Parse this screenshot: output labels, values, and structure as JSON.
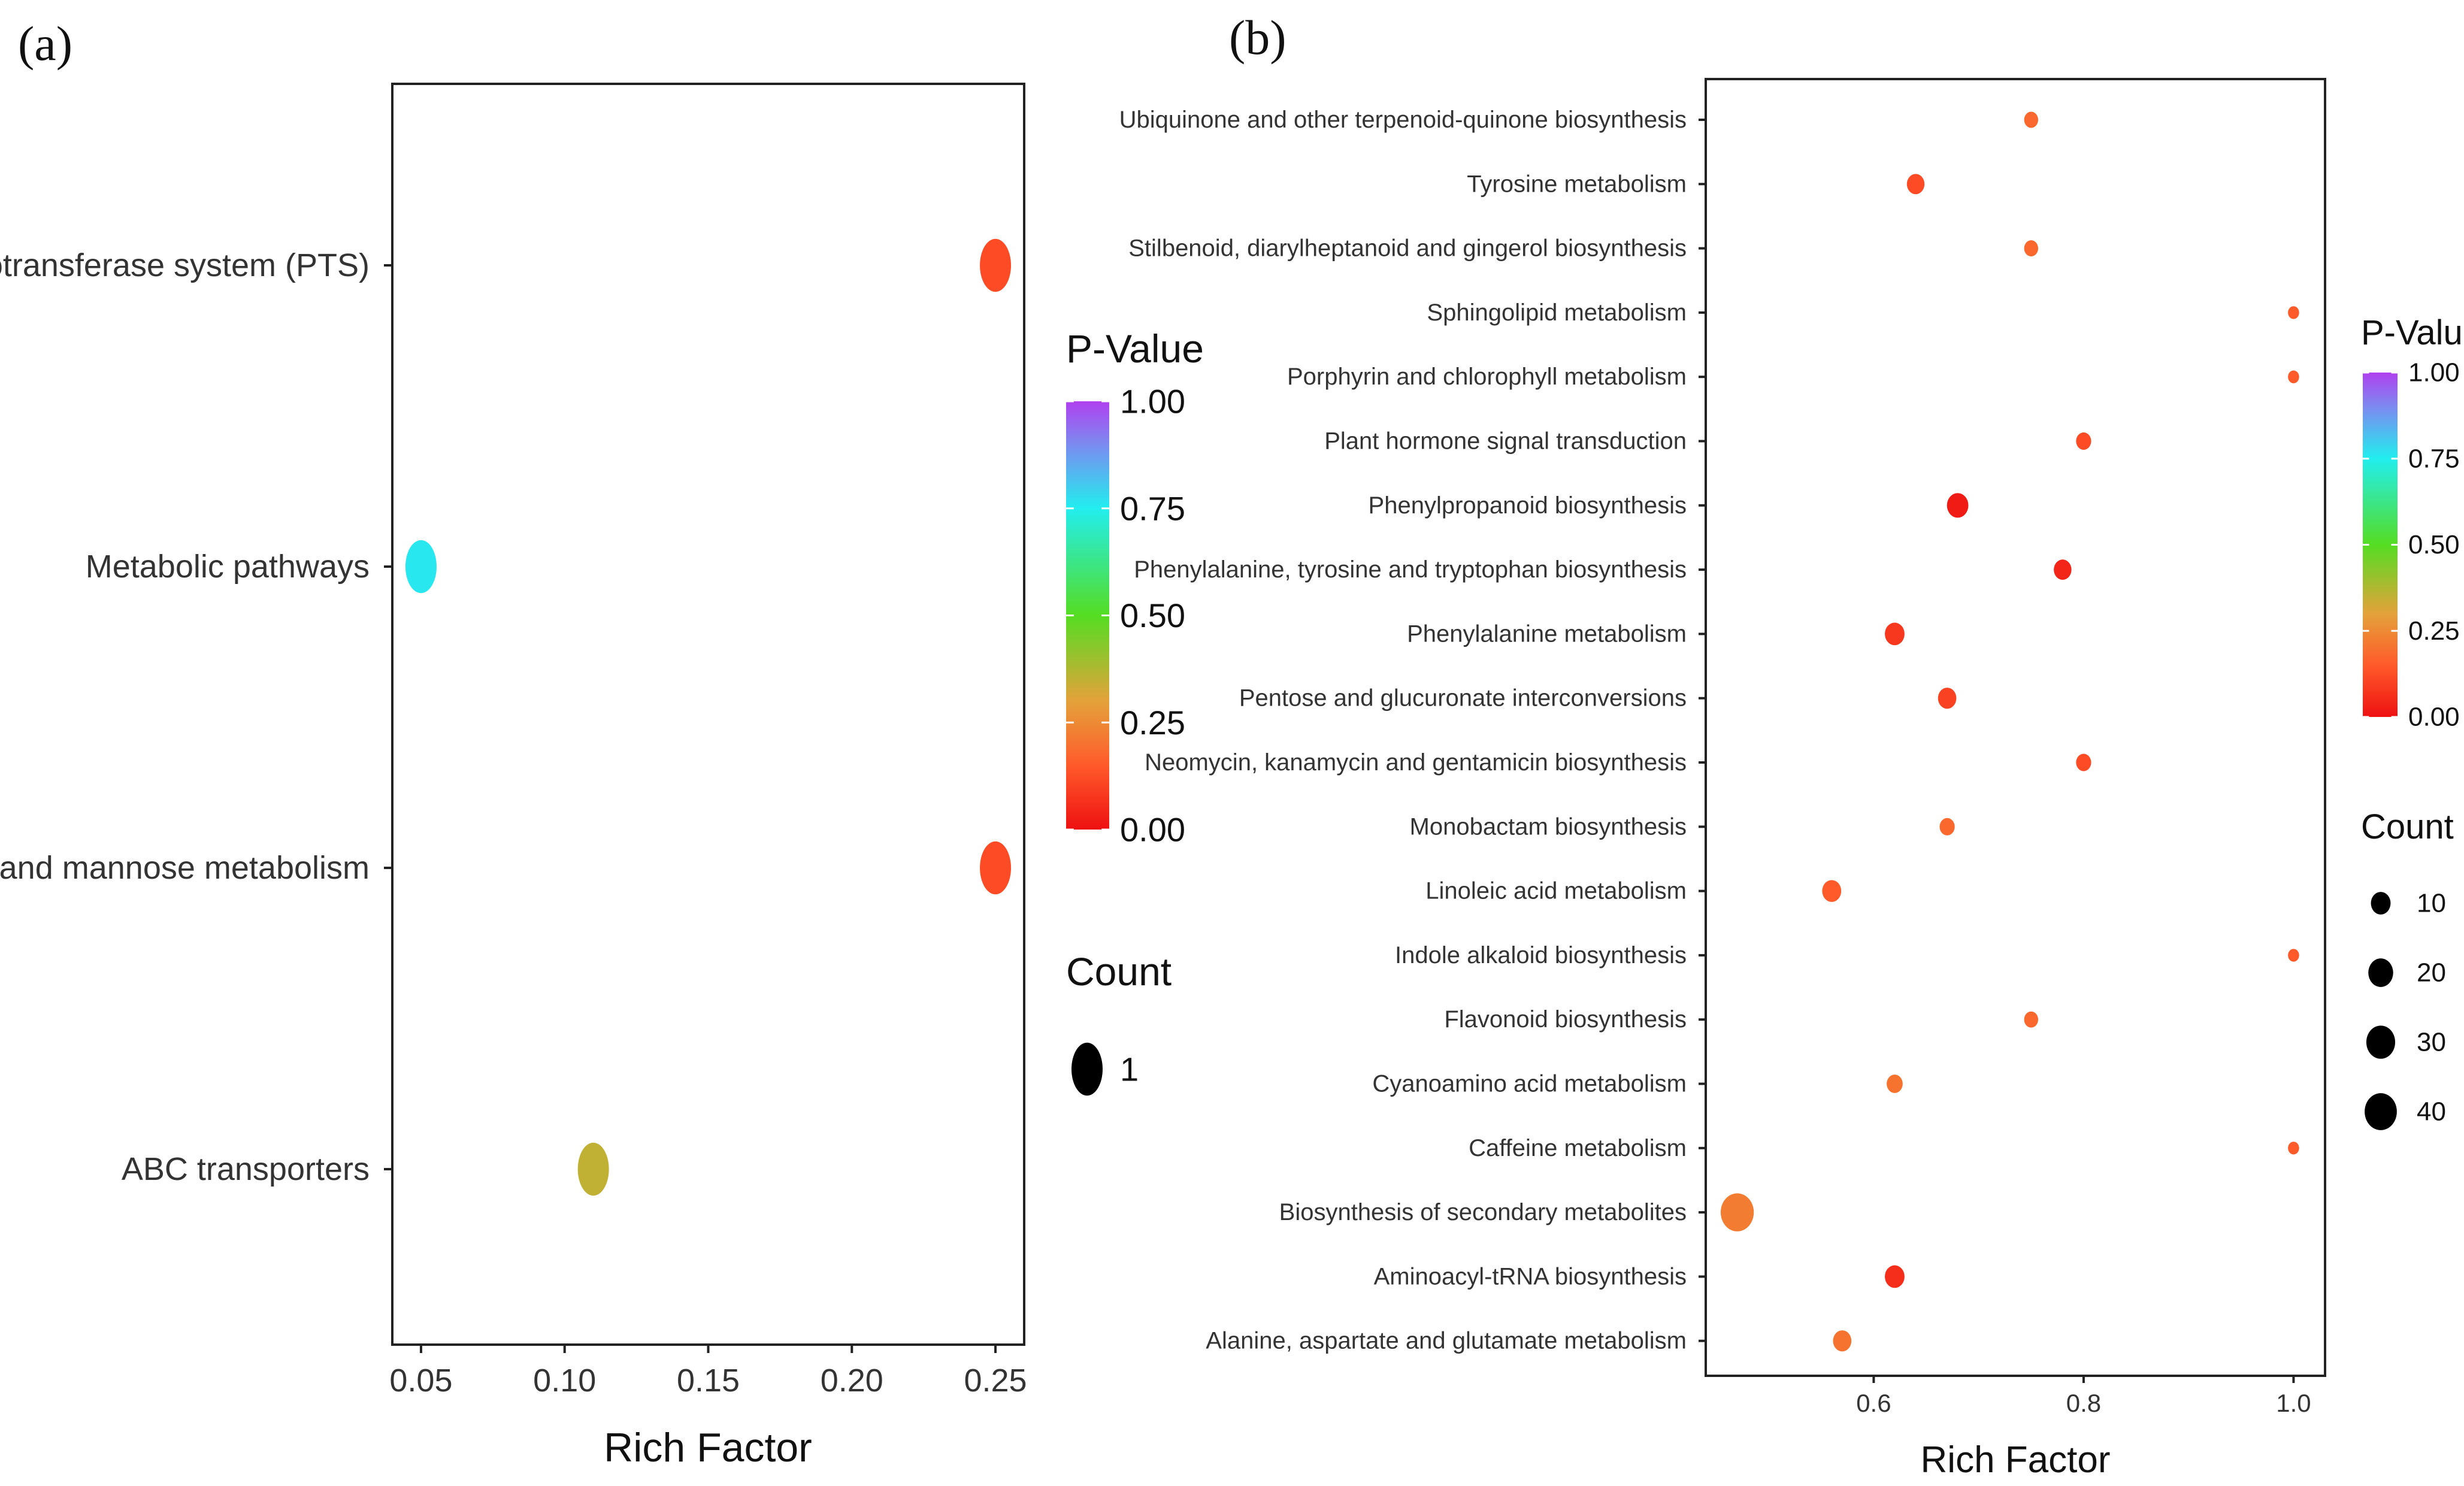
{
  "chart_data": [
    {
      "panel": "(a)",
      "type": "scatter",
      "title": "",
      "xlabel": "Rich Factor",
      "ylabel": "",
      "xlim": [
        0.04,
        0.26
      ],
      "xticks": [
        0.05,
        0.1,
        0.15,
        0.2,
        0.25
      ],
      "xtick_labels": [
        "0.05",
        "0.10",
        "0.15",
        "0.20",
        "0.25"
      ],
      "categories": [
        "Phosphotransferase system (PTS)",
        "Metabolic pathways",
        "Fructose and mannose metabolism",
        "ABC transporters"
      ],
      "points": [
        {
          "category": "Phosphotransferase system (PTS)",
          "x": 0.25,
          "pvalue": 0.12,
          "count": 1
        },
        {
          "category": "Metabolic pathways",
          "x": 0.05,
          "pvalue": 0.76,
          "count": 1
        },
        {
          "category": "Fructose and mannose metabolism",
          "x": 0.25,
          "pvalue": 0.12,
          "count": 1
        },
        {
          "category": "ABC transporters",
          "x": 0.11,
          "pvalue": 0.35,
          "count": 1
        }
      ],
      "color_legend": {
        "title": "P-Value",
        "ticks": [
          "1.00",
          "0.75",
          "0.50",
          "0.25",
          "0.00"
        ]
      },
      "size_legend": {
        "title": "Count",
        "entries": [
          {
            "label": "1",
            "value": 1
          }
        ]
      }
    },
    {
      "panel": "(b)",
      "type": "scatter",
      "title": "",
      "xlabel": "Rich Factor",
      "ylabel": "",
      "xlim": [
        0.44,
        1.03
      ],
      "xticks": [
        0.6,
        0.8,
        1.0
      ],
      "xtick_labels": [
        "0.6",
        "0.8",
        "1.0"
      ],
      "categories": [
        "Ubiquinone and other terpenoid-quinone biosynthesis",
        "Tyrosine metabolism",
        "Stilbenoid, diarylheptanoid and gingerol biosynthesis",
        "Sphingolipid metabolism",
        "Porphyrin and chlorophyll metabolism",
        "Plant hormone signal transduction",
        "Phenylpropanoid biosynthesis",
        "Phenylalanine, tyrosine and tryptophan biosynthesis",
        "Phenylalanine metabolism",
        "Pentose and glucuronate interconversions",
        "Neomycin, kanamycin and gentamicin biosynthesis",
        "Monobactam biosynthesis",
        "Linoleic acid metabolism",
        "Indole alkaloid biosynthesis",
        "Flavonoid biosynthesis",
        "Cyanoamino acid metabolism",
        "Caffeine metabolism",
        "Biosynthesis of secondary metabolites",
        "Aminoacyl-tRNA biosynthesis",
        "Alanine, aspartate and glutamate metabolism"
      ],
      "points": [
        {
          "category": "Ubiquinone and other terpenoid-quinone biosynthesis",
          "x": 0.75,
          "pvalue": 0.18,
          "count": 3
        },
        {
          "category": "Tyrosine metabolism",
          "x": 0.64,
          "pvalue": 0.12,
          "count": 7
        },
        {
          "category": "Stilbenoid, diarylheptanoid and gingerol biosynthesis",
          "x": 0.75,
          "pvalue": 0.18,
          "count": 3
        },
        {
          "category": "Sphingolipid metabolism",
          "x": 1.0,
          "pvalue": 0.15,
          "count": 1
        },
        {
          "category": "Porphyrin and chlorophyll metabolism",
          "x": 1.0,
          "pvalue": 0.15,
          "count": 1
        },
        {
          "category": "Plant hormone signal transduction",
          "x": 0.8,
          "pvalue": 0.12,
          "count": 4
        },
        {
          "category": "Phenylpropanoid biosynthesis",
          "x": 0.68,
          "pvalue": 0.02,
          "count": 13
        },
        {
          "category": "Phenylalanine, tyrosine and tryptophan biosynthesis",
          "x": 0.78,
          "pvalue": 0.04,
          "count": 7
        },
        {
          "category": "Phenylalanine metabolism",
          "x": 0.62,
          "pvalue": 0.08,
          "count": 10
        },
        {
          "category": "Pentose and glucuronate interconversions",
          "x": 0.67,
          "pvalue": 0.1,
          "count": 8
        },
        {
          "category": "Neomycin, kanamycin and gentamicin biosynthesis",
          "x": 0.8,
          "pvalue": 0.12,
          "count": 4
        },
        {
          "category": "Monobactam biosynthesis",
          "x": 0.67,
          "pvalue": 0.18,
          "count": 4
        },
        {
          "category": "Linoleic acid metabolism",
          "x": 0.56,
          "pvalue": 0.15,
          "count": 9
        },
        {
          "category": "Indole alkaloid biosynthesis",
          "x": 1.0,
          "pvalue": 0.15,
          "count": 1
        },
        {
          "category": "Flavonoid biosynthesis",
          "x": 0.75,
          "pvalue": 0.18,
          "count": 3
        },
        {
          "category": "Cyanoamino acid metabolism",
          "x": 0.62,
          "pvalue": 0.2,
          "count": 5
        },
        {
          "category": "Caffeine metabolism",
          "x": 1.0,
          "pvalue": 0.15,
          "count": 1
        },
        {
          "category": "Biosynthesis of secondary metabolites",
          "x": 0.47,
          "pvalue": 0.22,
          "count": 43
        },
        {
          "category": "Aminoacyl-tRNA biosynthesis",
          "x": 0.62,
          "pvalue": 0.06,
          "count": 10
        },
        {
          "category": "Alanine, aspartate and glutamate metabolism",
          "x": 0.57,
          "pvalue": 0.2,
          "count": 8
        }
      ],
      "color_legend": {
        "title": "P-Value",
        "ticks": [
          "1.00",
          "0.75",
          "0.50",
          "0.25",
          "0.00"
        ]
      },
      "size_legend": {
        "title": "Count",
        "entries": [
          {
            "label": "10",
            "value": 10
          },
          {
            "label": "20",
            "value": 20
          },
          {
            "label": "30",
            "value": 30
          },
          {
            "label": "40",
            "value": 40
          }
        ]
      }
    }
  ]
}
